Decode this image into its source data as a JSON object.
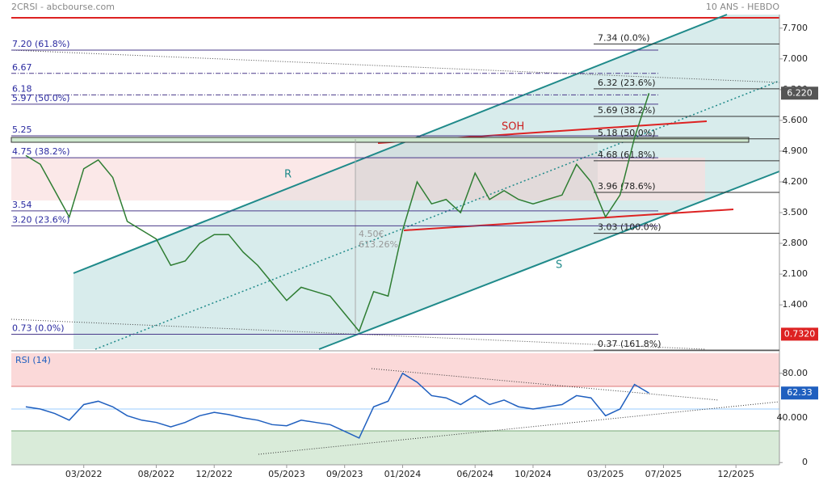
{
  "header": {
    "title": "2CRSI - abcbourse.com",
    "period": "10 ANS - HEBDO"
  },
  "chart_data": [
    {
      "type": "line",
      "name": "price",
      "x": [
        "11/2021",
        "12/2021",
        "01/2022",
        "02/2022",
        "03/2022",
        "04/2022",
        "05/2022",
        "06/2022",
        "07/2022",
        "08/2022",
        "09/2022",
        "10/2022",
        "11/2022",
        "12/2022",
        "01/2023",
        "02/2023",
        "03/2023",
        "04/2023",
        "05/2023",
        "06/2023",
        "07/2023",
        "08/2023",
        "09/2023",
        "10/2023",
        "11/2023",
        "12/2023",
        "01/2024",
        "02/2024",
        "03/2024",
        "04/2024",
        "05/2024",
        "06/2024",
        "07/2024",
        "08/2024",
        "09/2024",
        "10/2024",
        "11/2024",
        "12/2024",
        "01/2025",
        "02/2025",
        "03/2025",
        "04/2025",
        "05/2025",
        "06/2025"
      ],
      "values": [
        4.8,
        4.6,
        4.0,
        3.4,
        4.5,
        4.7,
        4.3,
        3.3,
        3.1,
        2.9,
        2.3,
        2.4,
        2.8,
        3.0,
        3.0,
        2.6,
        2.3,
        1.9,
        1.5,
        1.8,
        1.7,
        1.6,
        1.2,
        0.8,
        1.7,
        1.6,
        3.1,
        4.2,
        3.7,
        3.8,
        3.5,
        4.4,
        3.8,
        4.0,
        3.8,
        3.7,
        3.8,
        3.9,
        4.6,
        4.2,
        3.4,
        3.9,
        5.2,
        6.22
      ],
      "color": "#2e7d32",
      "xlim": [
        "10/2021",
        "03/2026"
      ],
      "xticks": [
        "03/2022",
        "08/2022",
        "12/2022",
        "05/2023",
        "09/2023",
        "01/2024",
        "06/2024",
        "10/2024",
        "03/2025",
        "07/2025",
        "12/2025"
      ],
      "ylim": [
        0.39,
        8.01
      ],
      "yticks": [
        {
          "value": 7.7,
          "label": "7.700"
        },
        {
          "value": 7.0,
          "label": "7.000"
        },
        {
          "value": 6.3,
          "label": "6.300"
        },
        {
          "value": 5.6,
          "label": "5.600"
        },
        {
          "value": 4.9,
          "label": "4.900"
        },
        {
          "value": 4.2,
          "label": "4.200"
        },
        {
          "value": 3.5,
          "label": "3.500"
        },
        {
          "value": 2.8,
          "label": "2.800"
        },
        {
          "value": 2.1,
          "label": "2.100"
        },
        {
          "value": 1.4,
          "label": "1.400"
        }
      ],
      "last_label": {
        "value": 6.22,
        "label": "6.220"
      },
      "low_label": {
        "value": 0.732,
        "label": "0.7320"
      },
      "left_levels": [
        {
          "value": 7.2,
          "label": "7.20  (61.8%)"
        },
        {
          "value": 6.67,
          "label": "6.67"
        },
        {
          "value": 6.18,
          "label": "6.18"
        },
        {
          "value": 5.97,
          "label": "5.97  (50.0%)"
        },
        {
          "value": 5.25,
          "label": "5.25"
        },
        {
          "value": 4.75,
          "label": "4.75  (38.2%)"
        },
        {
          "value": 3.54,
          "label": "3.54"
        },
        {
          "value": 3.2,
          "label": "3.20  (23.6%)"
        },
        {
          "value": 0.73,
          "label": "0.73  (0.0%)"
        }
      ],
      "right_levels": [
        {
          "value": 7.34,
          "label": "7.34  (0.0%)"
        },
        {
          "value": 6.32,
          "label": "6.32  (23.6%)"
        },
        {
          "value": 5.69,
          "label": "5.69  (38.2%)"
        },
        {
          "value": 5.18,
          "label": "5.18  (50.0%)"
        },
        {
          "value": 4.68,
          "label": "4.68  (61.8%)"
        },
        {
          "value": 3.96,
          "label": "3.96  (78.6%)"
        },
        {
          "value": 3.03,
          "label": "3.03  (100.0%)"
        },
        {
          "value": 0.37,
          "label": "0.37  (161.8%)"
        }
      ],
      "annotations": {
        "soh": "SOH",
        "r": "R",
        "s": "S",
        "low_price": "4.50€",
        "gain": "613.26%"
      }
    },
    {
      "type": "line",
      "name": "RSI (14)",
      "values": [
        50,
        48,
        44,
        38,
        52,
        55,
        50,
        42,
        38,
        36,
        32,
        36,
        42,
        45,
        43,
        40,
        38,
        34,
        33,
        38,
        36,
        34,
        28,
        22,
        50,
        55,
        80,
        72,
        60,
        58,
        52,
        60,
        52,
        56,
        50,
        48,
        50,
        52,
        60,
        58,
        42,
        48,
        70,
        62.33
      ],
      "color": "#1f5fbf",
      "ylim": [
        -2,
        98
      ],
      "yticks": [
        {
          "value": 80,
          "label": "80.00"
        },
        {
          "value": 40,
          "label": "40.000"
        },
        0
      ],
      "last_label": {
        "value": 62.33,
        "label": "62.33"
      }
    }
  ]
}
